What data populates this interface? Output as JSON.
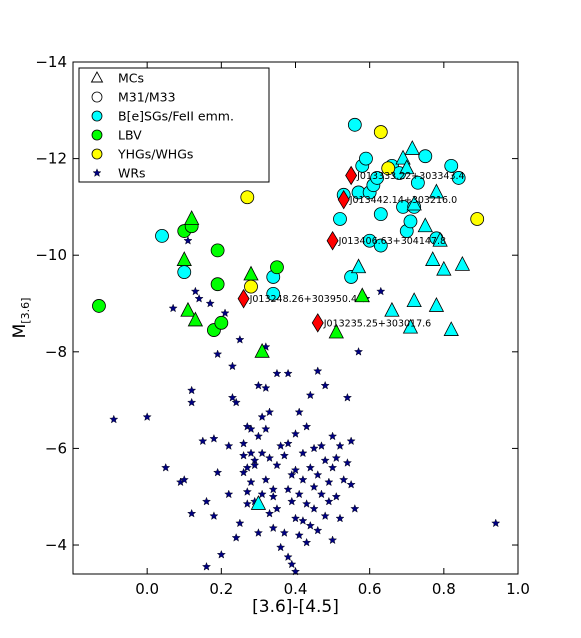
{
  "chart_data": {
    "type": "scatter",
    "xlabel": "[3.6]-[4.5]",
    "ylabel_main": "M",
    "ylabel_sub": "[3.6]",
    "xlim": [
      -0.2,
      1.0
    ],
    "ylim": [
      -3.4,
      -14
    ],
    "y_inverted": true,
    "x_ticks": [
      0.0,
      0.2,
      0.4,
      0.6,
      0.8,
      1.0
    ],
    "x_tick_labels": [
      "0.0",
      "0.2",
      "0.4",
      "0.6",
      "0.8",
      "1.0"
    ],
    "y_ticks": [
      -4,
      -6,
      -8,
      -10,
      -12,
      -14
    ],
    "y_tick_labels": [
      "−4",
      "−6",
      "−8",
      "−10",
      "−12",
      "−14"
    ],
    "grid": false,
    "legend_position": "top-left",
    "legend": [
      {
        "label": "MCs",
        "marker": "triangle-open"
      },
      {
        "label": "M31/M33",
        "marker": "circle-open"
      },
      {
        "label": "B[e]SGs/FeII emm.",
        "marker": "circle",
        "color": "#00ffff"
      },
      {
        "label": "LBV",
        "marker": "circle",
        "color": "#00ff00"
      },
      {
        "label": "YHGs/WHGs",
        "marker": "circle",
        "color": "#ffff00"
      },
      {
        "label": "WRs",
        "marker": "star",
        "color": "#000080"
      }
    ],
    "series": [
      {
        "class": "BeSG",
        "origin": "M31/M33",
        "marker": "circle",
        "color": "#00ffff",
        "points": [
          [
            0.04,
            -10.4
          ],
          [
            0.1,
            -9.65
          ],
          [
            0.34,
            -9.55
          ],
          [
            0.34,
            -9.2
          ],
          [
            0.52,
            -10.75
          ],
          [
            0.53,
            -11.25
          ],
          [
            0.55,
            -9.55
          ],
          [
            0.56,
            -12.7
          ],
          [
            0.57,
            -11.3
          ],
          [
            0.58,
            -11.85
          ],
          [
            0.59,
            -12.0
          ],
          [
            0.6,
            -11.3
          ],
          [
            0.6,
            -10.3
          ],
          [
            0.61,
            -11.45
          ],
          [
            0.62,
            -11.6
          ],
          [
            0.63,
            -10.85
          ],
          [
            0.63,
            -10.2
          ],
          [
            0.66,
            -11.85
          ],
          [
            0.68,
            -11.7
          ],
          [
            0.69,
            -11.0
          ],
          [
            0.7,
            -10.5
          ],
          [
            0.71,
            -10.7
          ],
          [
            0.72,
            -11.0
          ],
          [
            0.73,
            -11.5
          ],
          [
            0.75,
            -12.05
          ],
          [
            0.78,
            -10.35
          ],
          [
            0.82,
            -11.85
          ],
          [
            0.84,
            -11.6
          ]
        ]
      },
      {
        "class": "BeSG",
        "origin": "MCs",
        "marker": "triangle",
        "color": "#00ffff",
        "points": [
          [
            0.3,
            -4.85
          ],
          [
            0.57,
            -9.75
          ],
          [
            0.66,
            -8.85
          ],
          [
            0.69,
            -12.0
          ],
          [
            0.7,
            -11.8
          ],
          [
            0.71,
            -8.5
          ],
          [
            0.715,
            -12.2
          ],
          [
            0.72,
            -9.05
          ],
          [
            0.72,
            -11.05
          ],
          [
            0.75,
            -10.6
          ],
          [
            0.77,
            -9.9
          ],
          [
            0.78,
            -11.3
          ],
          [
            0.78,
            -8.95
          ],
          [
            0.79,
            -10.3
          ],
          [
            0.8,
            -9.7
          ],
          [
            0.82,
            -8.45
          ],
          [
            0.85,
            -9.8
          ]
        ]
      },
      {
        "class": "LBV",
        "origin": "M31/M33",
        "marker": "circle",
        "color": "#00ff00",
        "points": [
          [
            -0.13,
            -8.95
          ],
          [
            0.1,
            -10.5
          ],
          [
            0.12,
            -10.6
          ],
          [
            0.18,
            -8.45
          ],
          [
            0.19,
            -10.1
          ],
          [
            0.19,
            -9.4
          ],
          [
            0.2,
            -8.6
          ],
          [
            0.35,
            -9.75
          ]
        ]
      },
      {
        "class": "LBV",
        "origin": "MCs",
        "marker": "triangle",
        "color": "#00ff00",
        "points": [
          [
            0.1,
            -9.9
          ],
          [
            0.11,
            -8.85
          ],
          [
            0.12,
            -10.75
          ],
          [
            0.13,
            -8.65
          ],
          [
            0.28,
            -9.6
          ],
          [
            0.31,
            -8.0
          ],
          [
            0.51,
            -8.4
          ],
          [
            0.58,
            -9.15
          ]
        ]
      },
      {
        "class": "YHG",
        "origin": "M31/M33",
        "marker": "circle",
        "color": "#ffff00",
        "points": [
          [
            0.27,
            -11.2
          ],
          [
            0.28,
            -9.35
          ],
          [
            0.63,
            -12.55
          ],
          [
            0.65,
            -11.8
          ],
          [
            0.89,
            -10.75
          ]
        ]
      },
      {
        "class": "named",
        "origin": "M31/M33",
        "marker": "diamond",
        "color": "#ff0000",
        "points": [
          [
            0.55,
            -11.65
          ],
          [
            0.53,
            -11.15
          ],
          [
            0.5,
            -10.3
          ],
          [
            0.26,
            -9.1
          ],
          [
            0.46,
            -8.6
          ]
        ],
        "labels": [
          "J013333.22+303343.4",
          "J013442.14+303216.0",
          "J013406.63+304147.8",
          "J013248.26+303950.4",
          "J013235.25+303017.6"
        ]
      },
      {
        "class": "WR",
        "marker": "star",
        "color": "#000080",
        "points": [
          [
            -0.09,
            -6.6
          ],
          [
            0.0,
            -6.65
          ],
          [
            0.05,
            -5.6
          ],
          [
            0.07,
            -8.9
          ],
          [
            0.09,
            -5.3
          ],
          [
            0.1,
            -5.35
          ],
          [
            0.11,
            -10.3
          ],
          [
            0.12,
            -6.95
          ],
          [
            0.12,
            -7.2
          ],
          [
            0.12,
            -4.65
          ],
          [
            0.13,
            -9.25
          ],
          [
            0.14,
            -9.1
          ],
          [
            0.15,
            -6.15
          ],
          [
            0.16,
            -4.9
          ],
          [
            0.16,
            -3.55
          ],
          [
            0.17,
            -9.0
          ],
          [
            0.18,
            -6.2
          ],
          [
            0.18,
            -4.6
          ],
          [
            0.19,
            -7.95
          ],
          [
            0.19,
            -5.5
          ],
          [
            0.2,
            -3.8
          ],
          [
            0.21,
            -8.8
          ],
          [
            0.22,
            -6.05
          ],
          [
            0.22,
            -5.05
          ],
          [
            0.23,
            -7.7
          ],
          [
            0.23,
            -7.05
          ],
          [
            0.24,
            -4.15
          ],
          [
            0.24,
            -6.95
          ],
          [
            0.25,
            -8.25
          ],
          [
            0.25,
            -4.45
          ],
          [
            0.26,
            -5.85
          ],
          [
            0.26,
            -6.1
          ],
          [
            0.26,
            -5.5
          ],
          [
            0.27,
            -6.45
          ],
          [
            0.27,
            -5.6
          ],
          [
            0.27,
            -5.1
          ],
          [
            0.27,
            -4.85
          ],
          [
            0.28,
            -6.4
          ],
          [
            0.28,
            -5.3
          ],
          [
            0.28,
            -5.9
          ],
          [
            0.29,
            -5.75
          ],
          [
            0.29,
            -5.65
          ],
          [
            0.29,
            -4.9
          ],
          [
            0.3,
            -7.3
          ],
          [
            0.3,
            -6.25
          ],
          [
            0.3,
            -4.25
          ],
          [
            0.31,
            -6.65
          ],
          [
            0.31,
            -5.9
          ],
          [
            0.31,
            -5.05
          ],
          [
            0.32,
            -8.1
          ],
          [
            0.32,
            -7.25
          ],
          [
            0.32,
            -6.4
          ],
          [
            0.32,
            -5.35
          ],
          [
            0.33,
            -6.75
          ],
          [
            0.33,
            -5.8
          ],
          [
            0.33,
            -4.65
          ],
          [
            0.34,
            -5.15
          ],
          [
            0.34,
            -4.35
          ],
          [
            0.34,
            -5.0
          ],
          [
            0.35,
            -7.55
          ],
          [
            0.35,
            -5.65
          ],
          [
            0.35,
            -4.75
          ],
          [
            0.36,
            -6.05
          ],
          [
            0.36,
            -3.95
          ],
          [
            0.37,
            -5.85
          ],
          [
            0.37,
            -4.25
          ],
          [
            0.38,
            -7.55
          ],
          [
            0.38,
            -5.15
          ],
          [
            0.38,
            -6.1
          ],
          [
            0.38,
            -3.75
          ],
          [
            0.39,
            -5.45
          ],
          [
            0.39,
            -4.9
          ],
          [
            0.39,
            -3.6
          ],
          [
            0.4,
            -6.3
          ],
          [
            0.4,
            -5.55
          ],
          [
            0.4,
            -4.55
          ],
          [
            0.4,
            -3.45
          ],
          [
            0.41,
            -6.75
          ],
          [
            0.41,
            -5.05
          ],
          [
            0.41,
            -4.2
          ],
          [
            0.42,
            -5.9
          ],
          [
            0.42,
            -5.35
          ],
          [
            0.42,
            -4.5
          ],
          [
            0.43,
            -6.45
          ],
          [
            0.43,
            -4.85
          ],
          [
            0.43,
            -4.05
          ],
          [
            0.44,
            -7.1
          ],
          [
            0.44,
            -5.6
          ],
          [
            0.44,
            -4.4
          ],
          [
            0.45,
            -6.0
          ],
          [
            0.45,
            -5.2
          ],
          [
            0.45,
            -4.75
          ],
          [
            0.46,
            -7.6
          ],
          [
            0.46,
            -5.45
          ],
          [
            0.46,
            -4.3
          ],
          [
            0.47,
            -6.05
          ],
          [
            0.47,
            -5.05
          ],
          [
            0.48,
            -7.3
          ],
          [
            0.48,
            -5.75
          ],
          [
            0.48,
            -4.6
          ],
          [
            0.49,
            -5.3
          ],
          [
            0.49,
            -4.9
          ],
          [
            0.5,
            -6.25
          ],
          [
            0.5,
            -5.6
          ],
          [
            0.5,
            -4.1
          ],
          [
            0.51,
            -5.0
          ],
          [
            0.51,
            -5.8
          ],
          [
            0.52,
            -6.05
          ],
          [
            0.52,
            -4.55
          ],
          [
            0.53,
            -5.35
          ],
          [
            0.54,
            -7.05
          ],
          [
            0.54,
            -5.7
          ],
          [
            0.55,
            -5.25
          ],
          [
            0.55,
            -6.15
          ],
          [
            0.56,
            -4.75
          ],
          [
            0.57,
            -8.0
          ],
          [
            0.59,
            -9.1
          ],
          [
            0.63,
            -9.25
          ],
          [
            0.94,
            -4.45
          ]
        ]
      }
    ]
  }
}
